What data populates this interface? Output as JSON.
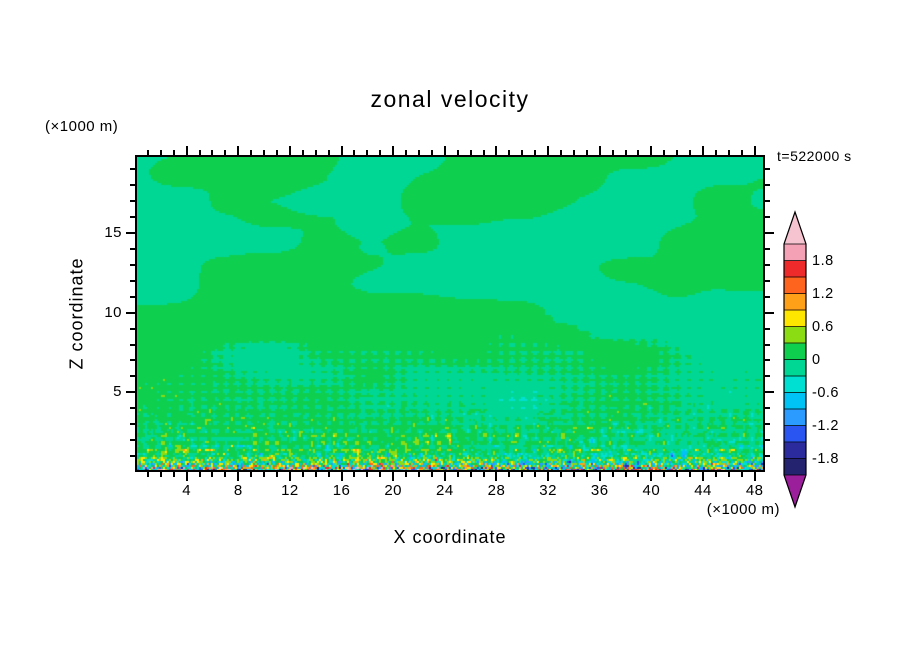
{
  "title": "zonal velocity",
  "timestamp": "t=522000 s",
  "chart_data": {
    "type": "heatmap",
    "title": "zonal velocity",
    "xlabel": "X coordinate",
    "ylabel": "Z coordinate",
    "x_unit": "(×1000 m)",
    "z_unit": "(×1000 m)",
    "time_label": "t=522000 s",
    "x_range": [
      0,
      48.8
    ],
    "z_range": [
      0,
      19.9
    ],
    "x_major_ticks": [
      4,
      8,
      12,
      16,
      20,
      24,
      28,
      32,
      36,
      40,
      44,
      48
    ],
    "x_minor_step": 1,
    "z_major_ticks": [
      5,
      10,
      15
    ],
    "z_minor_step": 1,
    "colorbar": {
      "boundary_labels": [
        "1.8",
        "1.2",
        "0.6",
        "0",
        "-0.6",
        "-1.2",
        "-1.8"
      ],
      "levels": [
        -2.1,
        -1.8,
        -1.5,
        -1.2,
        -0.9,
        -0.6,
        -0.3,
        0,
        0.3,
        0.6,
        0.9,
        1.2,
        1.5,
        1.8,
        2.1
      ],
      "colors": [
        "#232370",
        "#2b2b9e",
        "#2b55f0",
        "#2b9bff",
        "#00c3f5",
        "#00e0d2",
        "#00d795",
        "#0fcf4f",
        "#8cdc14",
        "#ffe600",
        "#ffa019",
        "#ff641e",
        "#ee2a2a",
        "#f4a0b5"
      ],
      "under_arrow_color": "#9b1f9b",
      "over_arrow_color": "#f6c3d0"
    },
    "field_description": "Zonal velocity cross-section: values near 0 (within ±0.3, rendered as two green shades) over most of the domain; fine diagonal cross-hatched wave pattern below z≈10; strong turbulent speckles reaching ±1.8 and beyond within ~1.5 (×1000 m) of the bottom surface.",
    "field_model": {
      "seed": 7,
      "blob_amplitude": 0.17,
      "blob2_amplitude": 0.09,
      "wave_amplitude": 0.42,
      "wave_depth_top_z": 10.5,
      "surface_turbulence_amplitude": 2.3,
      "surface_turbulence_depth_z": 2.0,
      "speckle_amplitude": 0.6,
      "speckle_depth_z": 7.0
    }
  }
}
